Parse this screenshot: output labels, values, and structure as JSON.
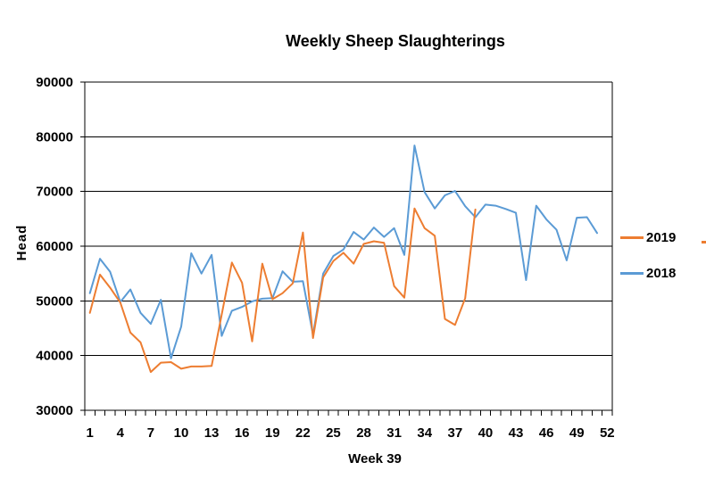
{
  "chart_data": {
    "type": "line",
    "title": "Weekly Sheep Slaughterings",
    "xlabel": "Week 39",
    "ylabel": "Head",
    "xlim": [
      1,
      52
    ],
    "ylim": [
      30000,
      90000
    ],
    "y_ticks": [
      30000,
      40000,
      50000,
      60000,
      70000,
      80000,
      90000
    ],
    "x_ticks": [
      1,
      4,
      7,
      10,
      13,
      16,
      19,
      22,
      25,
      28,
      31,
      34,
      37,
      40,
      43,
      46,
      49,
      52
    ],
    "grid": "horizontal",
    "legend_position": "right",
    "series": [
      {
        "name": "2019",
        "color": "#ED7D31",
        "x": [
          1,
          2,
          3,
          4,
          5,
          6,
          7,
          8,
          9,
          10,
          11,
          12,
          13,
          14,
          15,
          16,
          17,
          18,
          19,
          20,
          21,
          22,
          23,
          24,
          25,
          26,
          27,
          28,
          29,
          30,
          31,
          32,
          33,
          34,
          35,
          36,
          37,
          38,
          39
        ],
        "values": [
          47800,
          54800,
          52400,
          49700,
          44200,
          42400,
          37000,
          38700,
          38800,
          37600,
          38000,
          38000,
          38100,
          47500,
          57000,
          53300,
          42600,
          56800,
          50300,
          51400,
          53200,
          62500,
          43200,
          54300,
          57300,
          58800,
          56800,
          60400,
          60900,
          60600,
          52700,
          50600,
          66900,
          63300,
          61900,
          46700,
          45600,
          50500,
          66700
        ]
      },
      {
        "name": "2018",
        "color": "#5B9BD5",
        "x": [
          1,
          2,
          3,
          4,
          5,
          6,
          7,
          8,
          9,
          10,
          11,
          12,
          13,
          14,
          15,
          16,
          17,
          18,
          19,
          20,
          21,
          22,
          23,
          24,
          25,
          26,
          27,
          28,
          29,
          30,
          31,
          32,
          33,
          34,
          35,
          36,
          37,
          38,
          39,
          40,
          41,
          42,
          43,
          44,
          45,
          46,
          47,
          48,
          49,
          50,
          51
        ],
        "values": [
          51400,
          57700,
          55300,
          49800,
          52100,
          47800,
          45800,
          50200,
          39500,
          45300,
          58700,
          55000,
          58400,
          43600,
          48200,
          48900,
          49900,
          50400,
          50500,
          55400,
          53500,
          53600,
          43800,
          55000,
          58200,
          59400,
          62600,
          61200,
          63400,
          61700,
          63300,
          58400,
          78400,
          69900,
          66900,
          69300,
          70100,
          67300,
          65300,
          67600,
          67400,
          66800,
          66100,
          53800,
          67400,
          64900,
          63000,
          57400,
          65200,
          65300,
          62400
        ]
      }
    ]
  },
  "legend": {
    "items": [
      {
        "label": "2019",
        "color": "#ED7D31"
      },
      {
        "label": "2018",
        "color": "#5B9BD5"
      }
    ]
  },
  "style": {
    "axis_color": "#000000",
    "gridline_color": "#000000",
    "tick_label_color": "#000000"
  }
}
